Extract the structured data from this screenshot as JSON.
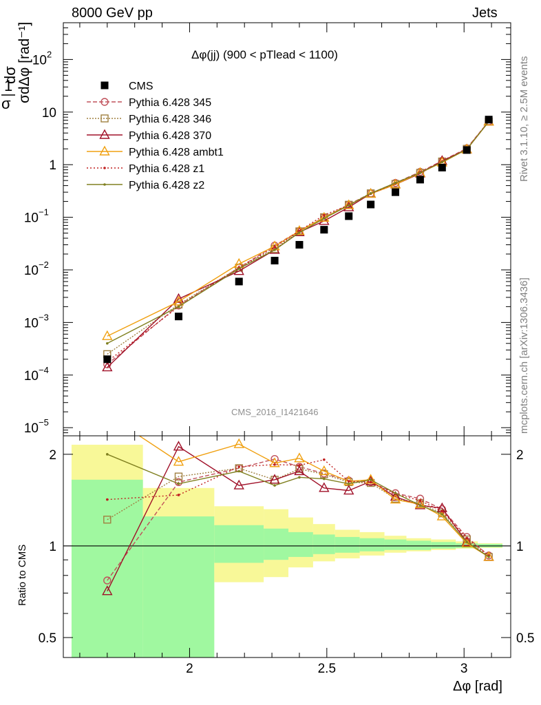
{
  "header": {
    "left": "8000 GeV pp",
    "right": "Jets"
  },
  "side_labels": {
    "version": "Rivet 3.1.10, ≥ 2.5M events",
    "source": "mcplots.cern.ch [arXiv:1306.3436]"
  },
  "watermark": "CMS_2016_I1421646",
  "colors": {
    "cms": "#000000",
    "p345": "#c0505a",
    "p346": "#a08040",
    "p370": "#a01028",
    "ambt1": "#f0a010",
    "z1": "#c02020",
    "z2": "#808020",
    "band_green": "#a0f8a0",
    "band_yellow": "#f8f898"
  },
  "chart_data": [
    {
      "type": "line",
      "panel": "main",
      "title": "Δφ(jj) (900 < pTlead <  1100)",
      "ylabel": "1/σ dσ/dΔφ [rad⁻¹]",
      "yscale": "log",
      "ylim": [
        7e-06,
        500
      ],
      "xlim": [
        1.54,
        3.17
      ],
      "yticks": [
        "10^-5",
        "10^-4",
        "10^-3",
        "10^-2",
        "10^-1",
        "1",
        "10",
        "10^2"
      ],
      "x": [
        1.7,
        1.96,
        2.18,
        2.31,
        2.4,
        2.49,
        2.58,
        2.66,
        2.75,
        2.84,
        2.92,
        3.01,
        3.09
      ],
      "series": [
        {
          "name": "CMS",
          "key": "cms",
          "style": "marker-square",
          "values": [
            0.0002,
            0.0013,
            0.006,
            0.015,
            0.03,
            0.058,
            0.105,
            0.175,
            0.3,
            0.52,
            0.88,
            1.9,
            7.2
          ]
        },
        {
          "name": "Pythia 6.428 345",
          "key": "p345",
          "style": "dashed-circle",
          "values": [
            0.00016,
            0.0021,
            0.011,
            0.029,
            0.055,
            0.1,
            0.175,
            0.285,
            0.45,
            0.73,
            1.18,
            2.05,
            6.7
          ]
        },
        {
          "name": "Pythia 6.428 346",
          "key": "p346",
          "style": "dotted-square",
          "values": [
            0.00025,
            0.0022,
            0.011,
            0.025,
            0.054,
            0.1,
            0.173,
            0.285,
            0.43,
            0.7,
            1.15,
            2.0,
            6.6
          ]
        },
        {
          "name": "Pythia 6.428 370",
          "key": "p370",
          "style": "solid-triangle",
          "values": [
            0.00014,
            0.0028,
            0.0095,
            0.024,
            0.052,
            0.085,
            0.155,
            0.28,
            0.42,
            0.68,
            1.18,
            1.95,
            6.6
          ]
        },
        {
          "name": "Pythia 6.428 ambt1",
          "key": "ambt1",
          "style": "solid-triangle-small",
          "values": [
            0.00055,
            0.0025,
            0.013,
            0.028,
            0.055,
            0.098,
            0.17,
            0.28,
            0.42,
            0.7,
            1.1,
            1.95,
            6.6
          ]
        },
        {
          "name": "Pythia 6.428 z1",
          "key": "z1",
          "style": "dotted-dot",
          "values": [
            0.00018,
            0.002,
            0.011,
            0.027,
            0.055,
            0.11,
            0.17,
            0.28,
            0.44,
            0.72,
            1.15,
            2.0,
            6.7
          ]
        },
        {
          "name": "Pythia 6.428 z2",
          "key": "z2",
          "style": "solid-dot",
          "values": [
            0.0004,
            0.002,
            0.0105,
            0.024,
            0.051,
            0.095,
            0.168,
            0.285,
            0.45,
            0.7,
            1.12,
            1.95,
            6.6
          ]
        }
      ]
    },
    {
      "type": "line",
      "panel": "ratio",
      "ylabel": "Ratio to CMS",
      "xlabel": "Δφ [rad]",
      "yscale": "log",
      "ylim": [
        0.43,
        2.3
      ],
      "xlim": [
        1.54,
        3.17
      ],
      "yticks": [
        "0.5",
        "1",
        "2"
      ],
      "xticks": [
        "2",
        "2.5",
        "3"
      ],
      "bands": {
        "edges": [
          1.57,
          1.83,
          2.09,
          2.27,
          2.36,
          2.45,
          2.53,
          2.62,
          2.71,
          2.79,
          2.88,
          2.97,
          3.05,
          3.14
        ],
        "green_lo": [
          0.43,
          0.43,
          0.88,
          0.9,
          0.92,
          0.94,
          0.95,
          0.96,
          0.97,
          0.97,
          0.98,
          0.985,
          0.99
        ],
        "green_hi": [
          1.65,
          1.25,
          1.17,
          1.14,
          1.11,
          1.09,
          1.07,
          1.06,
          1.05,
          1.04,
          1.03,
          1.02,
          1.015
        ],
        "yellow_lo": [
          0.43,
          0.53,
          0.76,
          0.79,
          0.85,
          0.89,
          0.91,
          0.93,
          0.95,
          0.96,
          0.97,
          0.98,
          0.985
        ],
        "yellow_hi": [
          2.15,
          1.55,
          1.35,
          1.32,
          1.24,
          1.18,
          1.13,
          1.11,
          1.08,
          1.06,
          1.05,
          1.035,
          1.02
        ]
      },
      "series": [
        {
          "name": "Pythia 6.428 345",
          "key": "p345",
          "values": [
            0.77,
            1.62,
            1.8,
            1.93,
            1.82,
            1.73,
            1.64,
            1.62,
            1.49,
            1.43,
            1.32,
            1.07,
            0.93
          ]
        },
        {
          "name": "Pythia 6.428 346",
          "key": "p346",
          "values": [
            1.22,
            1.69,
            1.8,
            1.65,
            1.79,
            1.72,
            1.62,
            1.61,
            1.43,
            1.38,
            1.28,
            1.05,
            0.92
          ]
        },
        {
          "name": "Pythia 6.428 370",
          "key": "p370",
          "values": [
            0.71,
            2.12,
            1.58,
            1.65,
            1.76,
            1.55,
            1.52,
            1.63,
            1.45,
            1.36,
            1.33,
            1.03,
            0.92
          ]
        },
        {
          "name": "Pythia 6.428 ambt1",
          "key": "ambt1",
          "values": [
            2.7,
            1.89,
            2.16,
            1.87,
            1.94,
            1.76,
            1.63,
            1.65,
            1.42,
            1.37,
            1.25,
            1.02,
            0.92
          ]
        },
        {
          "name": "Pythia 6.428 z1",
          "key": "z1",
          "values": [
            1.42,
            1.47,
            1.82,
            1.85,
            1.84,
            1.92,
            1.63,
            1.62,
            1.48,
            1.41,
            1.3,
            1.06,
            0.93
          ]
        },
        {
          "name": "Pythia 6.428 z2",
          "key": "z2",
          "values": [
            2.0,
            1.6,
            1.76,
            1.58,
            1.68,
            1.66,
            1.6,
            1.65,
            1.49,
            1.36,
            1.27,
            1.03,
            0.92
          ]
        }
      ]
    }
  ]
}
